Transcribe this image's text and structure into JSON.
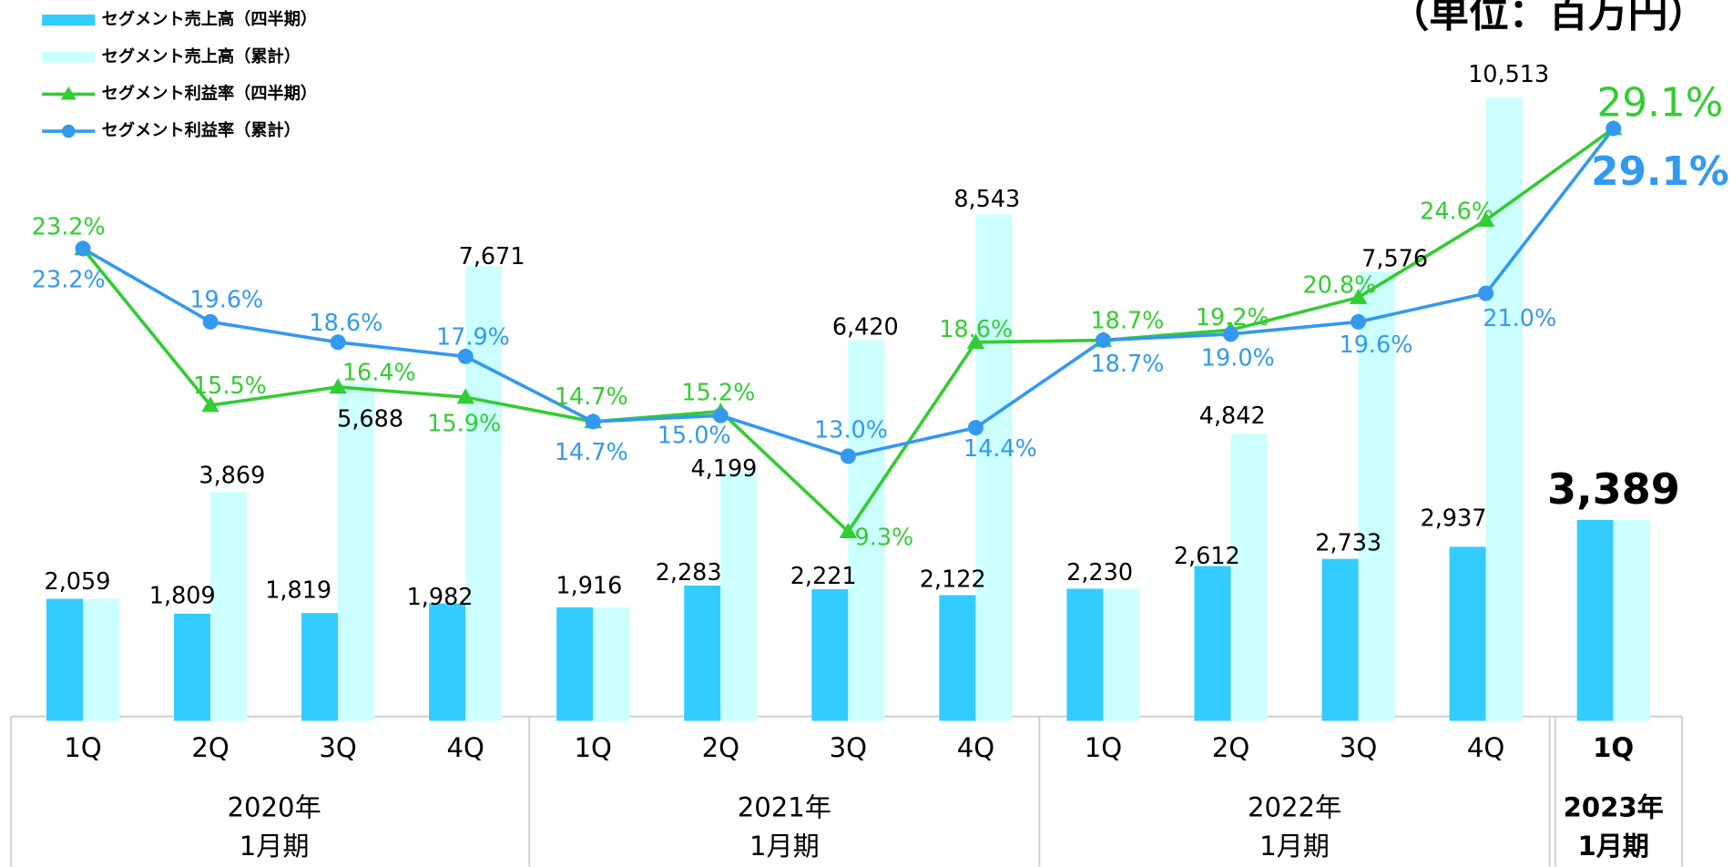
{
  "chart_data": {
    "type": "bar-line",
    "unit_label": "（単位：百万円）",
    "groups": [
      {
        "lines": [
          "2020年",
          "1月期"
        ],
        "categories": [
          "1Q",
          "2Q",
          "3Q",
          "4Q"
        ]
      },
      {
        "lines": [
          "2021年",
          "1月期"
        ],
        "categories": [
          "1Q",
          "2Q",
          "3Q",
          "4Q"
        ]
      },
      {
        "lines": [
          "2022年",
          "1月期"
        ],
        "categories": [
          "1Q",
          "2Q",
          "3Q",
          "4Q"
        ]
      },
      {
        "lines": [
          "2023年",
          "1月期"
        ],
        "categories": [
          "1Q"
        ]
      }
    ],
    "ylim": [
      0,
      12160
    ],
    "y2lim": [
      0,
      35.4
    ],
    "series": [
      {
        "name": "セグメント売上高（四半期）",
        "kind": "bar",
        "color": "#33ccff",
        "values": [
          2059,
          1809,
          1819,
          1982,
          1916,
          2283,
          2221,
          2122,
          2230,
          2612,
          2733,
          2937,
          3389
        ],
        "value_labels": [
          "2,059",
          "1,809",
          "1,819",
          "1,982",
          "1,916",
          "2,283",
          "2,221",
          "2,122",
          "2,230",
          "2,612",
          "2,733",
          "2,937",
          "3,389"
        ]
      },
      {
        "name": "セグメント売上高（累計）",
        "kind": "bar",
        "color": "#ccffff",
        "values": [
          2059,
          3869,
          5688,
          7671,
          1916,
          4199,
          6420,
          8543,
          2230,
          4842,
          7576,
          10513,
          3389
        ],
        "value_labels": [
          null,
          "3,869",
          "5,688",
          "7,671",
          null,
          "4,199",
          "6,420",
          "8,543",
          null,
          "4,842",
          "7,576",
          "10,513",
          null
        ]
      },
      {
        "name": "セグメント利益率（四半期）",
        "kind": "line",
        "marker": "triangle",
        "axis": "y2",
        "color": "#33cc33",
        "values": [
          23.2,
          15.5,
          16.4,
          15.9,
          14.7,
          15.2,
          9.3,
          18.6,
          18.7,
          19.2,
          20.8,
          24.6,
          29.1
        ],
        "value_labels": [
          "23.2%",
          "15.5%",
          "16.4%",
          "15.9%",
          "14.7%",
          "15.2%",
          "9.3%",
          "18.6%",
          "18.7%",
          "19.2%",
          "20.8%",
          "24.6%",
          "29.1%"
        ]
      },
      {
        "name": "セグメント利益率（累計）",
        "kind": "line",
        "marker": "circle",
        "axis": "y2",
        "color": "#3399ee",
        "values": [
          23.2,
          19.6,
          18.6,
          17.9,
          14.7,
          15.0,
          13.0,
          14.4,
          18.7,
          19.0,
          19.6,
          21.0,
          29.1
        ],
        "value_labels": [
          "23.2%",
          "19.6%",
          "18.6%",
          "17.9%",
          "14.7%",
          "15.0%",
          "13.0%",
          "14.4%",
          "18.7%",
          "19.0%",
          "19.6%",
          "21.0%",
          "29.1%"
        ]
      }
    ]
  }
}
